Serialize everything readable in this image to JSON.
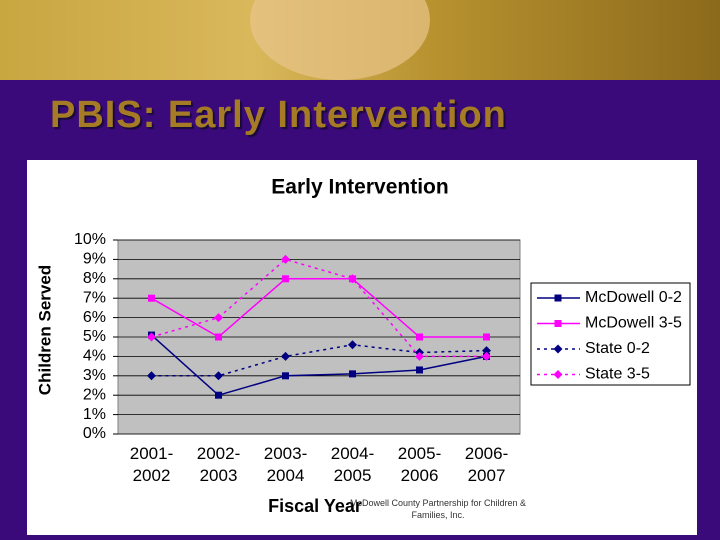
{
  "slide_title": "PBIS: Early Intervention",
  "footer": "McDowell County Partnership for Children & Families, Inc.",
  "chart_data": {
    "type": "line",
    "title": "Early Intervention",
    "x_label": "Fiscal Year",
    "y_label": "Children Served",
    "categories": [
      "2001-\n2002",
      "2002-\n2003",
      "2003-\n2004",
      "2004-\n2005",
      "2005-\n2006",
      "2006-\n2007"
    ],
    "ylim": [
      0,
      10
    ],
    "yticks": [
      {
        "value": 0,
        "label": "0%"
      },
      {
        "value": 1,
        "label": "1%"
      },
      {
        "value": 2,
        "label": "2%"
      },
      {
        "value": 3,
        "label": "3%"
      },
      {
        "value": 4,
        "label": "4%"
      },
      {
        "value": 5,
        "label": "5%"
      },
      {
        "value": 6,
        "label": "6%"
      },
      {
        "value": 7,
        "label": "7%"
      },
      {
        "value": 8,
        "label": "8%"
      },
      {
        "value": 9,
        "label": "9%"
      },
      {
        "value": 10,
        "label": "10%"
      }
    ],
    "grid": true,
    "legend": "right",
    "series": [
      {
        "name": "McDowell 0-2",
        "color": "#000080",
        "line_style": "solid",
        "marker": "square",
        "values": [
          5.1,
          2,
          3,
          3.1,
          3.3,
          4
        ]
      },
      {
        "name": "McDowell 3-5",
        "color": "#ff00ff",
        "line_style": "solid",
        "marker": "square",
        "values": [
          7,
          5,
          8,
          8,
          5,
          5
        ]
      },
      {
        "name": "State 0-2",
        "color": "#000080",
        "line_style": "dotted",
        "marker": "diamond",
        "values": [
          3,
          3,
          4,
          4.6,
          4.2,
          4.3
        ]
      },
      {
        "name": "State 3-5",
        "color": "#ff00ff",
        "line_style": "dotted",
        "marker": "diamond",
        "values": [
          5,
          6,
          9,
          8,
          4,
          4
        ]
      }
    ]
  }
}
